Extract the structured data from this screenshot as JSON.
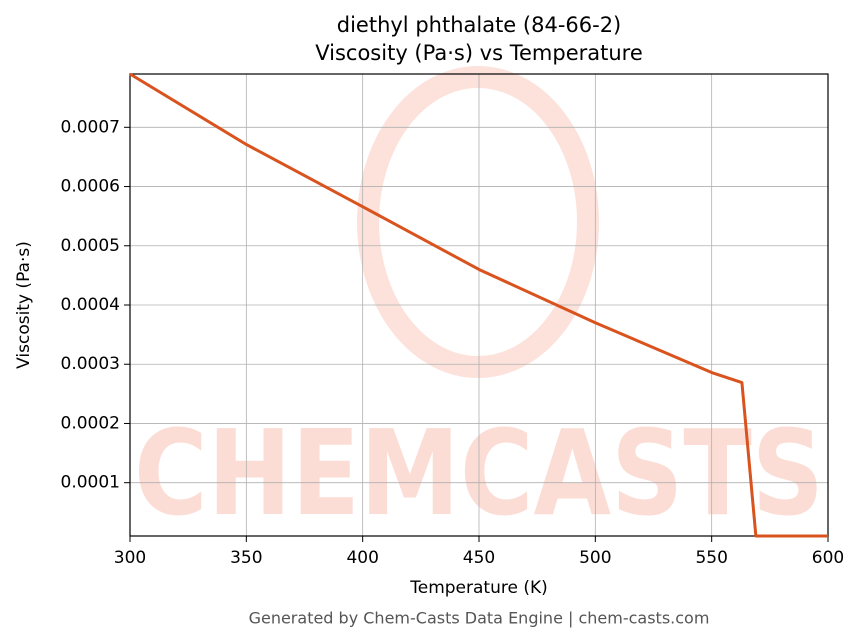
{
  "chart_data": {
    "type": "line",
    "title": "diethyl phthalate (84-66-2)",
    "subtitle": "Viscosity (Pa·s) vs Temperature",
    "x_label": "Temperature (K)",
    "y_label": "Viscosity (Pa·s)",
    "watermark": "CHEMCASTS",
    "footer": "Generated by Chem-Casts Data Engine | chem-casts.com",
    "x": [
      300,
      350,
      400,
      450,
      500,
      550,
      563,
      569,
      600
    ],
    "series": [
      {
        "name": "Viscosity",
        "color": "#d9531e",
        "values": [
          0.00079,
          0.000671,
          0.000566,
          0.00046,
          0.00037,
          0.000286,
          0.000269,
          1e-05,
          1e-05
        ]
      }
    ],
    "xlim": [
      300,
      600
    ],
    "xticks": [
      300,
      350,
      400,
      450,
      500,
      550,
      600
    ],
    "ylim": [
      1e-05,
      0.00079
    ],
    "yticks": [
      0.0001,
      0.0002,
      0.0003,
      0.0004,
      0.0005,
      0.0006,
      0.0007
    ],
    "grid": true
  }
}
